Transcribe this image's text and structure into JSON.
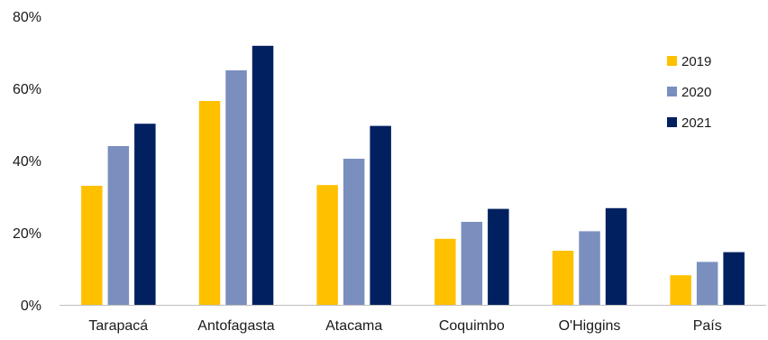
{
  "chart_data": {
    "type": "bar",
    "title": "",
    "xlabel": "",
    "ylabel": "",
    "categories": [
      "Tarapacá",
      "Antofagasta",
      "Atacama",
      "Coquimbo",
      "O'Higgins",
      "País"
    ],
    "series": [
      {
        "name": "2019",
        "color": "#FFC000",
        "values": [
          33,
          56.5,
          33.2,
          18.3,
          15,
          8.2
        ]
      },
      {
        "name": "2020",
        "color": "#7A8FBE",
        "values": [
          44,
          65,
          40.5,
          23,
          20.4,
          11.9
        ]
      },
      {
        "name": "2021",
        "color": "#002060",
        "values": [
          50.2,
          71.8,
          49.6,
          26.6,
          26.8,
          14.6
        ]
      }
    ],
    "ylim": [
      0,
      80
    ],
    "yticks": [
      0,
      20,
      40,
      60,
      80
    ],
    "ytick_format": "percent",
    "ytick_labels": [
      "0%",
      "20%",
      "40%",
      "60%",
      "80%"
    ],
    "grid": false,
    "legend_position": "right"
  }
}
